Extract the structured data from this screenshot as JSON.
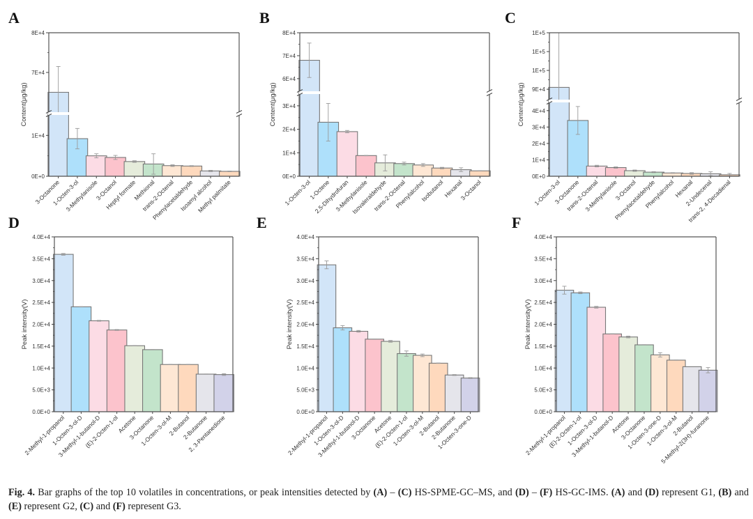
{
  "figure": {
    "caption_parts": [
      {
        "text": "Fig. 4.",
        "bold": true
      },
      {
        "text": " Bar graphs of the top 10 volatiles in concentrations, or peak intensities detected by ",
        "bold": false
      },
      {
        "text": "(A)",
        "bold": true
      },
      {
        "text": " – ",
        "bold": false
      },
      {
        "text": "(C)",
        "bold": true
      },
      {
        "text": " HS-SPME-GC–MS, and ",
        "bold": false
      },
      {
        "text": "(D)",
        "bold": true
      },
      {
        "text": " – ",
        "bold": false
      },
      {
        "text": "(F)",
        "bold": true
      },
      {
        "text": " HS-GC-IMS. ",
        "bold": false
      },
      {
        "text": "(A)",
        "bold": true
      },
      {
        "text": " and ",
        "bold": false
      },
      {
        "text": "(D)",
        "bold": true
      },
      {
        "text": " represent G1, ",
        "bold": false
      },
      {
        "text": "(B)",
        "bold": true
      },
      {
        "text": " and ",
        "bold": false
      },
      {
        "text": "(E)",
        "bold": true
      },
      {
        "text": " represent G2, ",
        "bold": false
      },
      {
        "text": "(C)",
        "bold": true
      },
      {
        "text": " and ",
        "bold": false
      },
      {
        "text": "(F)",
        "bold": true
      },
      {
        "text": " represent G3.",
        "bold": false
      }
    ]
  },
  "bar_colors": [
    "#d2e5f8",
    "#aee0fb",
    "#fcdce5",
    "#fcc3cc",
    "#e5ecdb",
    "#c3e4cb",
    "#fee7d4",
    "#fed9bd",
    "#e5e5eb",
    "#d2d2e9"
  ],
  "chart_data": [
    {
      "panel": "A",
      "type": "bar",
      "group": "G1",
      "method": "HS-SPME-GC-MS",
      "ylabel": "Content(μg/kg)",
      "xlabel": "",
      "broken_axis": true,
      "lower_range": [
        0,
        15000
      ],
      "upper_range": [
        60000,
        80000
      ],
      "lower_ticks": [
        {
          "v": 0,
          "label": "0E+0"
        },
        {
          "v": 10000,
          "label": "1E+4"
        }
      ],
      "upper_ticks": [
        {
          "v": 70000,
          "label": "7E+4"
        },
        {
          "v": 80000,
          "label": "8E+4"
        }
      ],
      "categories": [
        "3-Octanone",
        "1-Octen-3-ol",
        "3-Methylanisole",
        "3-Octanol",
        "Heptyl formate",
        "Methional",
        "trans-2-Octenal",
        "Phenylacetaldehyde",
        "Isoamyl alcohol",
        "Methyl palmitate"
      ],
      "italic_prefix": [
        "",
        "",
        "",
        "",
        "",
        "",
        "trans",
        "",
        "",
        ""
      ],
      "values": [
        65000,
        9200,
        5000,
        4600,
        3600,
        3000,
        2600,
        2500,
        1300,
        1200
      ],
      "errors": [
        6500,
        2500,
        500,
        500,
        200,
        2500,
        200,
        100,
        150,
        80
      ],
      "color_index": [
        0,
        1,
        2,
        3,
        4,
        5,
        6,
        7,
        8,
        7
      ]
    },
    {
      "panel": "B",
      "type": "bar",
      "group": "G2",
      "method": "HS-SPME-GC-MS",
      "ylabel": "Content(μg/kg)",
      "xlabel": "",
      "broken_axis": true,
      "lower_range": [
        0,
        35000
      ],
      "upper_range": [
        54500,
        80000
      ],
      "lower_ticks": [
        {
          "v": 0,
          "label": "0E+0"
        },
        {
          "v": 10000,
          "label": "1E+4"
        },
        {
          "v": 20000,
          "label": "2E+4"
        },
        {
          "v": 30000,
          "label": "3E+4"
        }
      ],
      "upper_ticks": [
        {
          "v": 60000,
          "label": "6E+4"
        },
        {
          "v": 70000,
          "label": "7E+4"
        },
        {
          "v": 80000,
          "label": "8E+4"
        }
      ],
      "categories": [
        "1-Octen-3-ol",
        "1-Octene",
        "2,5-Dihydrofuran",
        "3-Methylanisole",
        "Isovaleraldehyde",
        "trans-2-Octenal",
        "Phenylalcohol",
        "Isobutanol",
        "Hexanal",
        "3-Octanol"
      ],
      "italic_prefix": [
        "",
        "",
        "",
        "",
        "",
        "trans",
        "",
        "",
        "",
        ""
      ],
      "values": [
        68000,
        23000,
        19000,
        8800,
        5700,
        5400,
        4800,
        3500,
        2800,
        2300
      ],
      "errors": [
        7500,
        8000,
        500,
        100,
        3400,
        600,
        600,
        300,
        800,
        100
      ],
      "color_index": [
        0,
        1,
        2,
        3,
        4,
        5,
        6,
        7,
        8,
        7
      ]
    },
    {
      "panel": "C",
      "type": "bar",
      "group": "G3",
      "method": "HS-SPME-GC-MS",
      "ylabel": "Content(μg/kg)",
      "xlabel": "",
      "broken_axis": true,
      "lower_range": [
        0,
        45000
      ],
      "upper_range": [
        84500,
        120000
      ],
      "lower_ticks": [
        {
          "v": 0,
          "label": "0E+0"
        },
        {
          "v": 10000,
          "label": "1E+4"
        },
        {
          "v": 20000,
          "label": "2E+4"
        },
        {
          "v": 30000,
          "label": "3E+4"
        },
        {
          "v": 40000,
          "label": "4E+4"
        }
      ],
      "upper_ticks": [
        {
          "v": 90000,
          "label": "9E+4"
        },
        {
          "v": 100000,
          "label": "1E+5"
        },
        {
          "v": 110000,
          "label": "1E+5"
        },
        {
          "v": 120000,
          "label": "1E+5"
        }
      ],
      "categories": [
        "1-Octen-3-ol",
        "3-Octanone",
        "trans-2-Octenal",
        "3-Methylanisole",
        "3-Octanol",
        "Phenylacetaldehyde",
        "Phenylalcohol",
        "Hexanal",
        "2-Undecenal",
        "trans-2, 4-Decadienal"
      ],
      "italic_prefix": [
        "",
        "",
        "trans",
        "",
        "",
        "",
        "",
        "",
        "",
        "trans"
      ],
      "values": [
        91000,
        34000,
        6200,
        5300,
        3400,
        2500,
        2000,
        1700,
        1500,
        900
      ],
      "errors": [
        29000,
        8500,
        500,
        400,
        400,
        300,
        200,
        500,
        1200,
        800
      ],
      "color_index": [
        0,
        1,
        2,
        3,
        4,
        5,
        6,
        7,
        8,
        7
      ]
    },
    {
      "panel": "D",
      "type": "bar",
      "group": "G1",
      "method": "HS-GC-IMS",
      "ylabel": "Peak intensity(V)",
      "xlabel": "",
      "broken_axis": false,
      "ylim": [
        0,
        40000
      ],
      "ticks": [
        {
          "v": 0,
          "label": "0.0E+0"
        },
        {
          "v": 5000,
          "label": "5.0E+3"
        },
        {
          "v": 10000,
          "label": "1.0E+4"
        },
        {
          "v": 15000,
          "label": "1.5E+4"
        },
        {
          "v": 20000,
          "label": "2.0E+4"
        },
        {
          "v": 25000,
          "label": "2.5E+4"
        },
        {
          "v": 30000,
          "label": "3.0E+4"
        },
        {
          "v": 35000,
          "label": "3.5E+4"
        },
        {
          "v": 40000,
          "label": "4.0E+4"
        }
      ],
      "categories": [
        "2-Methyl-1-propanol",
        "1-Octen-3-ol-D",
        "3-Methyl-1-butanol-D",
        "(E)-2-Octen-1-ol",
        "Acetone",
        "3-Octanone",
        "1-Octen-3-ol-M",
        "2-Butanol",
        "2-Butanone",
        "2, 3-Pentanedione"
      ],
      "italic_prefix": [
        "",
        "",
        "",
        "E",
        "",
        "",
        "",
        "",
        "",
        ""
      ],
      "values": [
        36000,
        24000,
        20800,
        18700,
        15100,
        14200,
        10800,
        10800,
        8600,
        8500
      ],
      "errors": [
        200,
        50,
        100,
        100,
        50,
        50,
        50,
        50,
        50,
        200
      ],
      "color_index": [
        0,
        1,
        2,
        3,
        4,
        5,
        6,
        7,
        8,
        9
      ]
    },
    {
      "panel": "E",
      "type": "bar",
      "group": "G2",
      "method": "HS-GC-IMS",
      "ylabel": "Peak intensity(V)",
      "xlabel": "",
      "broken_axis": false,
      "ylim": [
        0,
        40000
      ],
      "ticks": [
        {
          "v": 0,
          "label": "0.0E+0"
        },
        {
          "v": 5000,
          "label": "5.0E+3"
        },
        {
          "v": 10000,
          "label": "1.0E+4"
        },
        {
          "v": 15000,
          "label": "1.5E+4"
        },
        {
          "v": 20000,
          "label": "2.0E+4"
        },
        {
          "v": 25000,
          "label": "2.5E+4"
        },
        {
          "v": 30000,
          "label": "3.0E+4"
        },
        {
          "v": 35000,
          "label": "3.5E+4"
        },
        {
          "v": 40000,
          "label": "4.0E+4"
        }
      ],
      "categories": [
        "2-Methyl-1-propanol",
        "1-Octen-3-ol-D",
        "3-Methyl-1-butanol-D",
        "3-Octanone",
        "Acetone",
        "(E)-2-Octen-1-ol",
        "1-Octen-3-ol-M",
        "2-Butanol",
        "2-Butanone",
        "1-Octen-3-one-D"
      ],
      "italic_prefix": [
        "",
        "",
        "",
        "",
        "",
        "E",
        "",
        "",
        "",
        ""
      ],
      "values": [
        33600,
        19200,
        18400,
        16600,
        16100,
        13300,
        12900,
        11100,
        8400,
        7700
      ],
      "errors": [
        900,
        500,
        200,
        50,
        200,
        600,
        300,
        50,
        100,
        100
      ],
      "color_index": [
        0,
        1,
        2,
        3,
        4,
        5,
        6,
        7,
        8,
        9
      ]
    },
    {
      "panel": "F",
      "type": "bar",
      "group": "G3",
      "method": "HS-GC-IMS",
      "ylabel": "Peak intensity(V)",
      "xlabel": "",
      "broken_axis": false,
      "ylim": [
        0,
        40000
      ],
      "ticks": [
        {
          "v": 0,
          "label": "0.0E+0"
        },
        {
          "v": 5000,
          "label": "5.0E+3"
        },
        {
          "v": 10000,
          "label": "1.0E+4"
        },
        {
          "v": 15000,
          "label": "1.5E+4"
        },
        {
          "v": 20000,
          "label": "2.0E+4"
        },
        {
          "v": 25000,
          "label": "2.5E+4"
        },
        {
          "v": 30000,
          "label": "3.0E+4"
        },
        {
          "v": 35000,
          "label": "3.5E+4"
        },
        {
          "v": 40000,
          "label": "4.0E+4"
        }
      ],
      "categories": [
        "2-Methyl-1-propanol",
        "(E)-2-Octen-1-ol",
        "1-Octen-3-ol-D",
        "3-Methyl-1-butanol-D",
        "Acetone",
        "3-Octanone",
        "1-Octen-3-one-D",
        "1-Octen-3-ol-M",
        "2-Butanol",
        "5-Methyl-2(3H)-furanone"
      ],
      "italic_prefix": [
        "",
        "E",
        "",
        "",
        "",
        "",
        "",
        "",
        "",
        ""
      ],
      "values": [
        27800,
        27200,
        23900,
        17800,
        17100,
        15300,
        13000,
        11800,
        10300,
        9500
      ],
      "errors": [
        900,
        200,
        200,
        50,
        200,
        50,
        500,
        50,
        0,
        600
      ],
      "color_index": [
        0,
        1,
        2,
        3,
        4,
        5,
        6,
        7,
        8,
        9
      ]
    }
  ]
}
